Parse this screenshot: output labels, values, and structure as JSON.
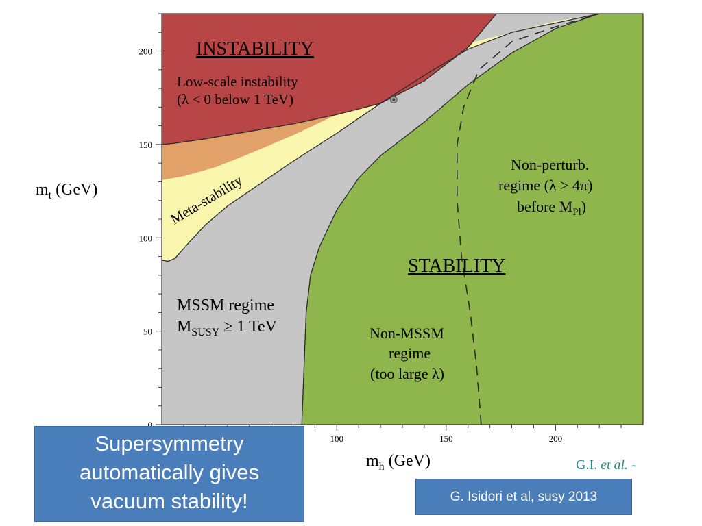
{
  "chart_data": {
    "type": "area",
    "xlabel": "m",
    "xlabel_sub": "h",
    "xlabel_unit": " (GeV)",
    "ylabel": "m",
    "ylabel_sub": "t",
    "ylabel_unit": " (GeV)",
    "xlim": [
      20,
      240
    ],
    "ylim": [
      0,
      220
    ],
    "x_ticks": [
      100,
      150,
      200
    ],
    "y_ticks": [
      0,
      50,
      100,
      150,
      200
    ],
    "colors": {
      "instability": "#b94646",
      "orange_overlap": "#e3a16a",
      "metastability": "#fbf6ae",
      "mssm": "#c6c6c6",
      "stability": "#8eb64d"
    },
    "regions": {
      "instability": [
        [
          20,
          150
        ],
        [
          25,
          150.5
        ],
        [
          40,
          153
        ],
        [
          60,
          157
        ],
        [
          80,
          161
        ],
        [
          100,
          166
        ],
        [
          120,
          172
        ],
        [
          140,
          184
        ],
        [
          160,
          202
        ],
        [
          173,
          220
        ],
        [
          20,
          220
        ]
      ],
      "metastability_lower": [
        [
          20,
          88
        ],
        [
          23,
          87.5
        ],
        [
          26,
          89
        ],
        [
          32,
          97
        ],
        [
          40,
          107
        ],
        [
          50,
          117
        ],
        [
          65,
          129
        ],
        [
          80,
          141
        ],
        [
          100,
          156
        ],
        [
          120,
          172
        ],
        [
          140,
          187
        ],
        [
          160,
          201
        ],
        [
          180,
          210
        ],
        [
          200,
          215
        ],
        [
          220,
          220
        ]
      ],
      "metastability_upper": [
        [
          20,
          131
        ],
        [
          30,
          133
        ],
        [
          45,
          138
        ],
        [
          60,
          145
        ],
        [
          80,
          155
        ],
        [
          100,
          166
        ],
        [
          120,
          177
        ],
        [
          140,
          193
        ],
        [
          160,
          204
        ],
        [
          180,
          211
        ],
        [
          200,
          216
        ],
        [
          220,
          220
        ]
      ],
      "orange_overlap": [
        [
          20,
          131
        ],
        [
          30,
          133
        ],
        [
          45,
          138
        ],
        [
          60,
          145
        ],
        [
          80,
          155
        ],
        [
          100,
          166
        ],
        [
          120,
          172
        ],
        [
          100,
          166
        ],
        [
          80,
          161
        ],
        [
          60,
          157
        ],
        [
          40,
          153
        ],
        [
          25,
          150.5
        ],
        [
          20,
          150
        ]
      ],
      "stability": [
        [
          84,
          0
        ],
        [
          85,
          30
        ],
        [
          86,
          60
        ],
        [
          88,
          80
        ],
        [
          92,
          95
        ],
        [
          100,
          115
        ],
        [
          110,
          132
        ],
        [
          120,
          144
        ],
        [
          140,
          162
        ],
        [
          160,
          182
        ],
        [
          180,
          199
        ],
        [
          200,
          212
        ],
        [
          220,
          220
        ],
        [
          240,
          220
        ],
        [
          240,
          0
        ]
      ],
      "nonperturb_dashed": [
        [
          166,
          0
        ],
        [
          164,
          30
        ],
        [
          161,
          60
        ],
        [
          157,
          90
        ],
        [
          155,
          120
        ],
        [
          155,
          150
        ],
        [
          158,
          170
        ],
        [
          165,
          190
        ],
        [
          180,
          205
        ],
        [
          200,
          213
        ],
        [
          220,
          220
        ]
      ],
      "yellow_upper_tip": [
        [
          120,
          177
        ],
        [
          160,
          204
        ],
        [
          200,
          216
        ],
        [
          220,
          220
        ],
        [
          200,
          218
        ],
        [
          180,
          220
        ],
        [
          140,
          220
        ],
        [
          120,
          220
        ]
      ]
    },
    "point": {
      "x": 126,
      "y": 174
    },
    "annotations": {
      "instability_title": "INSTABILITY",
      "low_scale_1": "Low-scale instability",
      "low_scale_2": "(λ < 0  below 1 TeV)",
      "meta": "Meta-stability",
      "nonpert_1": "Non-perturb.",
      "nonpert_2": "regime (λ > 4π)",
      "nonpert_3": "before M",
      "nonpert_3_sub": "Pl",
      "nonpert_3_end": ")",
      "stability_title": "STABILITY",
      "mssm_1": "MSSM regime",
      "mssm_2": "M",
      "mssm_2_sub": "SUSY",
      "mssm_2_end": " ≥ 1 TeV",
      "nonmssm_1": "Non-MSSM",
      "nonmssm_2": "regime",
      "nonmssm_3": "(too large λ)"
    }
  },
  "callout": {
    "line1": "Supersymmetry",
    "line2": "automatically gives",
    "line3": "vacuum stability!"
  },
  "credit_label": "G. Isidori et al, susy 2013",
  "gi_credit": {
    "name": "G.I. ",
    "etal": "et al.",
    "suffix": " -"
  }
}
